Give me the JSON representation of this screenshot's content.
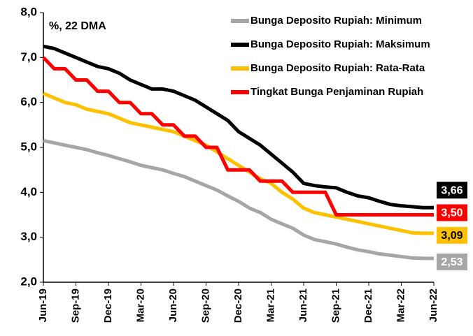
{
  "chart_data": {
    "type": "line",
    "subtitle": "%, 22 DMA",
    "categories": [
      "Jun-19",
      null,
      null,
      "Sep-19",
      null,
      null,
      "Dec-19",
      null,
      null,
      "Mar-20",
      null,
      null,
      "Jun-20",
      null,
      null,
      "Sep-20",
      null,
      null,
      "Dec-20",
      null,
      null,
      "Mar-21",
      null,
      null,
      "Jun-21",
      null,
      null,
      "Sep-21",
      null,
      null,
      "Dec-21",
      null,
      null,
      "Mar-22",
      null,
      null,
      "Jun-22"
    ],
    "ylim": [
      2,
      8
    ],
    "yticks": [
      {
        "value": 2,
        "label": "2,0"
      },
      {
        "value": 3,
        "label": "3,0"
      },
      {
        "value": 4,
        "label": "4,0"
      },
      {
        "value": 5,
        "label": "5,0"
      },
      {
        "value": 6,
        "label": "6,0"
      },
      {
        "value": 7,
        "label": "7,0"
      },
      {
        "value": 8,
        "label": "8,0"
      }
    ],
    "grid": false,
    "legend": "top-right",
    "series": [
      {
        "name": "Bunga Deposito Rupiah: Minimum",
        "color": "#a6a6a6",
        "end_label": "2,53",
        "values": [
          5.15,
          5.1,
          5.05,
          5.0,
          4.95,
          4.88,
          4.82,
          4.75,
          4.68,
          4.6,
          4.55,
          4.5,
          4.42,
          4.35,
          4.25,
          4.15,
          4.05,
          3.92,
          3.8,
          3.65,
          3.55,
          3.4,
          3.3,
          3.2,
          3.05,
          2.95,
          2.9,
          2.85,
          2.78,
          2.72,
          2.68,
          2.63,
          2.6,
          2.57,
          2.54,
          2.53,
          2.53
        ]
      },
      {
        "name": "Bunga Deposito Rupiah: Maksimum",
        "color": "#000000",
        "end_label": "3,66",
        "values": [
          7.25,
          7.2,
          7.1,
          7.0,
          6.9,
          6.8,
          6.75,
          6.65,
          6.5,
          6.4,
          6.3,
          6.3,
          6.25,
          6.15,
          6.05,
          5.9,
          5.75,
          5.6,
          5.35,
          5.2,
          5.05,
          4.85,
          4.65,
          4.45,
          4.2,
          4.15,
          4.12,
          4.1,
          4.0,
          3.92,
          3.88,
          3.8,
          3.73,
          3.7,
          3.68,
          3.66,
          3.66
        ]
      },
      {
        "name": "Bunga Deposito Rupiah: Rata-Rata",
        "color": "#ffc000",
        "end_label": "3,09",
        "values": [
          6.2,
          6.1,
          6.0,
          5.95,
          5.85,
          5.8,
          5.75,
          5.65,
          5.55,
          5.5,
          5.45,
          5.4,
          5.35,
          5.25,
          5.15,
          5.05,
          4.9,
          4.75,
          4.6,
          4.45,
          4.3,
          4.2,
          4.0,
          3.85,
          3.65,
          3.55,
          3.5,
          3.45,
          3.4,
          3.35,
          3.3,
          3.25,
          3.2,
          3.15,
          3.1,
          3.09,
          3.09
        ]
      },
      {
        "name": "Tingkat Bunga Penjaminan Rupiah",
        "color": "#ff0000",
        "end_label": "3,50",
        "values": [
          7.0,
          6.75,
          6.75,
          6.5,
          6.5,
          6.25,
          6.25,
          6.0,
          6.0,
          5.75,
          5.75,
          5.5,
          5.5,
          5.25,
          5.25,
          5.0,
          5.0,
          4.5,
          4.5,
          4.5,
          4.25,
          4.25,
          4.25,
          4.0,
          4.0,
          4.0,
          4.0,
          3.5,
          3.5,
          3.5,
          3.5,
          3.5,
          3.5,
          3.5,
          3.5,
          3.5,
          3.5
        ]
      }
    ]
  }
}
